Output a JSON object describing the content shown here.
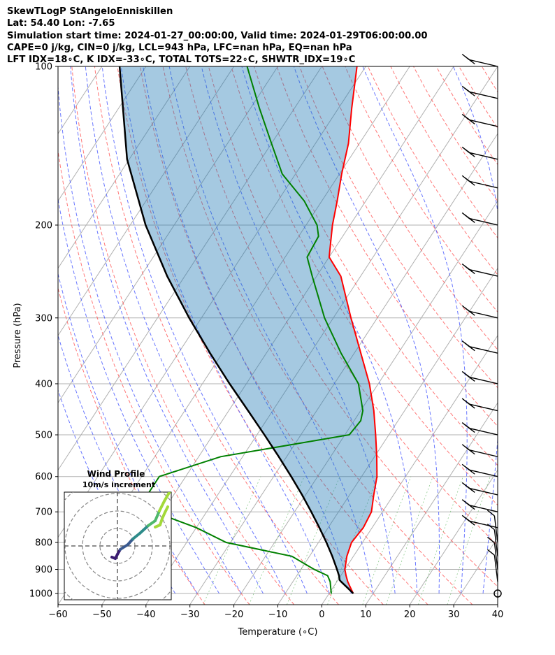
{
  "header": {
    "line1": "SkewTLogP StAngeloEnniskillen",
    "line2": "Lat: 54.40   Lon: -7.65",
    "line3": "Simulation start time: 2024-01-27_00:00:00, Valid time: 2024-01-29T06:00:00.00",
    "line4": "CAPE=0 j/kg, CIN=0 j/kg, LCL=943 hPa, LFC=nan hPa, EQ=nan hPa",
    "line5": "LFT IDX=18∘C, K IDX=-33∘C, TOTAL TOTS=22∘C, SHWTR_IDX=19∘C"
  },
  "chart_data": {
    "type": "line",
    "subtype": "skew-T log-P diagram",
    "xlabel": "Temperature (∘C)",
    "ylabel": "Pressure (hPa)",
    "xlim": [
      -60,
      40
    ],
    "ylim": [
      1050,
      100
    ],
    "x_ticks": [
      -60,
      -50,
      -40,
      -30,
      -20,
      -10,
      0,
      10,
      20,
      30,
      40
    ],
    "y_ticks": [
      100,
      200,
      300,
      400,
      500,
      600,
      700,
      800,
      900,
      1000
    ],
    "y_scale": "log",
    "grid": true,
    "series": [
      {
        "role": "temperature",
        "color": "#ff0000",
        "pressure": [
          1000,
          975,
          950,
          925,
          900,
          850,
          800,
          750,
          700,
          650,
          600,
          550,
          500,
          450,
          400,
          350,
          300,
          250,
          230,
          200,
          180,
          160,
          140,
          120,
          100
        ],
        "temperature": [
          5.5,
          4.0,
          2.5,
          1.2,
          0.0,
          -1.5,
          -2.5,
          -2.0,
          -2.5,
          -4.5,
          -6.5,
          -9.5,
          -13.0,
          -17.0,
          -22.0,
          -28.5,
          -36.0,
          -44.5,
          -50.0,
          -54.0,
          -56.5,
          -59.5,
          -62.5,
          -67.0,
          -72.0
        ]
      },
      {
        "role": "dewpoint",
        "color": "#008000",
        "pressure": [
          1000,
          975,
          950,
          925,
          900,
          850,
          800,
          750,
          700,
          650,
          600,
          550,
          500,
          470,
          450,
          400,
          350,
          300,
          250,
          230,
          210,
          200,
          180,
          160,
          140,
          120,
          100
        ],
        "temperature": [
          0.5,
          -0.5,
          -1.5,
          -3.0,
          -7.0,
          -14.0,
          -31.0,
          -40.0,
          -52.0,
          -56.0,
          -56.0,
          -45.0,
          -19.0,
          -18.5,
          -19.5,
          -24.5,
          -33.0,
          -42.0,
          -51.0,
          -55.0,
          -55.5,
          -57.5,
          -64.0,
          -73.0,
          -80.0,
          -88.0,
          -97.0
        ]
      },
      {
        "role": "parcel",
        "color": "#000000",
        "pressure": [
          1000,
          975,
          950,
          943,
          925,
          900,
          850,
          800,
          750,
          700,
          650,
          600,
          550,
          500,
          450,
          400,
          350,
          300,
          250,
          200,
          150,
          100
        ],
        "temperature": [
          5.5,
          3.3,
          1.0,
          0.4,
          -0.4,
          -1.8,
          -4.8,
          -8.2,
          -12.0,
          -16.2,
          -20.8,
          -26.0,
          -31.8,
          -38.3,
          -45.6,
          -53.8,
          -62.8,
          -72.8,
          -84.0,
          -96.5,
          -110.5,
          -126.0
        ]
      }
    ],
    "wind_barbs": {
      "color": "#000000",
      "x_position_deg_C": 40,
      "pressure": [
        1000,
        950,
        900,
        850,
        800,
        750,
        700,
        650,
        600,
        550,
        500,
        450,
        400,
        350,
        300,
        250,
        200,
        170,
        150,
        130,
        115,
        100
      ]
    },
    "inset": {
      "title_line1": "Wind Profile",
      "title_line2": "10m/s increment",
      "hodograph_colors": [
        "#3b1c71",
        "#3a5a8f",
        "#2e8c8a",
        "#4fb86b",
        "#a3d93a"
      ]
    }
  }
}
